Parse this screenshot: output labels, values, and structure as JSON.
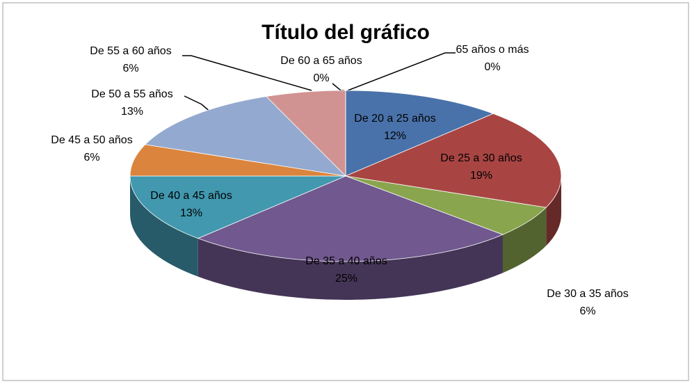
{
  "chart_data": {
    "type": "pie",
    "title": "Título del gráfico",
    "categories": [
      "De 20 a 25 años",
      "De 25 a 30 años",
      "De 30 a 35 años",
      "De 35 a 40 años",
      "De 40 a 45 años",
      "De 45 a 50 años",
      "De 50 a 55 años",
      "De 55 a 60 años",
      "De 60 a 65 años",
      "65 años o más"
    ],
    "values": [
      12,
      19,
      6,
      25,
      13,
      6,
      13,
      6,
      0,
      0
    ],
    "value_labels": [
      "12%",
      "19%",
      "6%",
      "25%",
      "13%",
      "6%",
      "13%",
      "6%",
      "0%",
      "0%"
    ],
    "colors": [
      "#4a72aa",
      "#a84543",
      "#89a54e",
      "#71588f",
      "#4198af",
      "#db843d",
      "#93a9cf",
      "#d19392",
      "#c0c0c0",
      "#c0c0c0"
    ]
  }
}
